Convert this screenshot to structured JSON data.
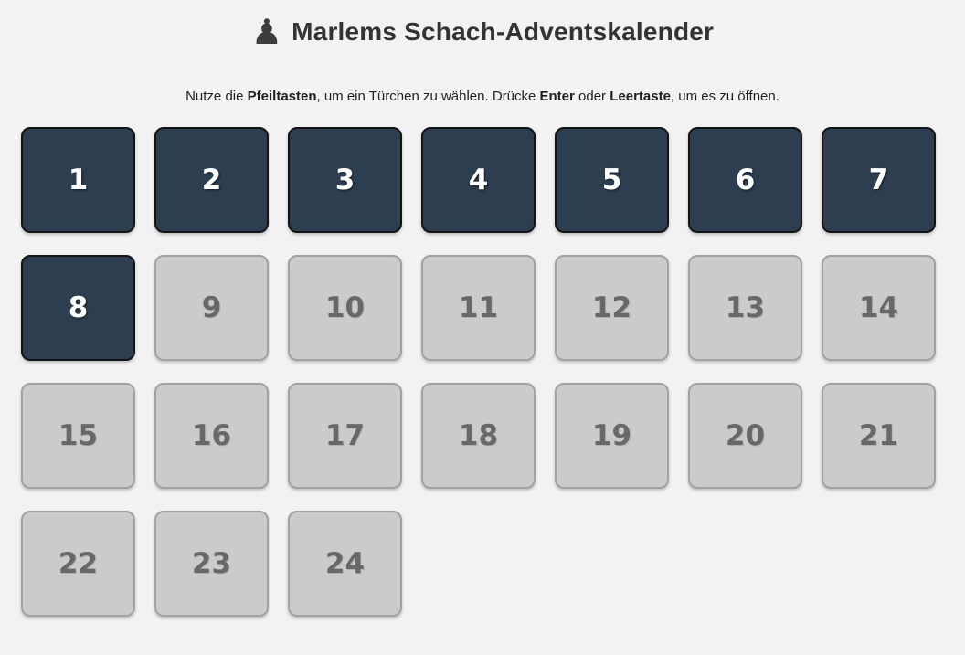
{
  "header": {
    "icon": "♟",
    "title": "Marlems Schach-Adventskalender"
  },
  "instructions": {
    "segments": [
      {
        "text": "Nutze die ",
        "bold": false
      },
      {
        "text": "Pfeiltasten",
        "bold": true
      },
      {
        "text": ", um ein Türchen zu wählen. Drücke ",
        "bold": false
      },
      {
        "text": "Enter",
        "bold": true
      },
      {
        "text": " oder ",
        "bold": false
      },
      {
        "text": "Leertaste",
        "bold": true
      },
      {
        "text": ", um es zu öffnen.",
        "bold": false
      }
    ]
  },
  "calendar": {
    "doors": [
      {
        "number": "1",
        "state": "open"
      },
      {
        "number": "2",
        "state": "open"
      },
      {
        "number": "3",
        "state": "open"
      },
      {
        "number": "4",
        "state": "open"
      },
      {
        "number": "5",
        "state": "open"
      },
      {
        "number": "6",
        "state": "open"
      },
      {
        "number": "7",
        "state": "open"
      },
      {
        "number": "8",
        "state": "open"
      },
      {
        "number": "9",
        "state": "closed"
      },
      {
        "number": "10",
        "state": "closed"
      },
      {
        "number": "11",
        "state": "closed"
      },
      {
        "number": "12",
        "state": "closed"
      },
      {
        "number": "13",
        "state": "closed"
      },
      {
        "number": "14",
        "state": "closed"
      },
      {
        "number": "15",
        "state": "closed"
      },
      {
        "number": "16",
        "state": "closed"
      },
      {
        "number": "17",
        "state": "closed"
      },
      {
        "number": "18",
        "state": "closed"
      },
      {
        "number": "19",
        "state": "closed"
      },
      {
        "number": "20",
        "state": "closed"
      },
      {
        "number": "21",
        "state": "closed"
      },
      {
        "number": "22",
        "state": "closed"
      },
      {
        "number": "23",
        "state": "closed"
      },
      {
        "number": "24",
        "state": "closed"
      }
    ]
  },
  "theme": {
    "page_bg": "#f2f2f2",
    "open_bg": "#2c3e50",
    "open_border": "#141414",
    "open_text": "#ffffff",
    "closed_bg": "#cbcbcb",
    "closed_border": "#a2a2a2",
    "closed_text": "#686868",
    "title_color": "#333333",
    "text_color": "#1f1f1f"
  }
}
